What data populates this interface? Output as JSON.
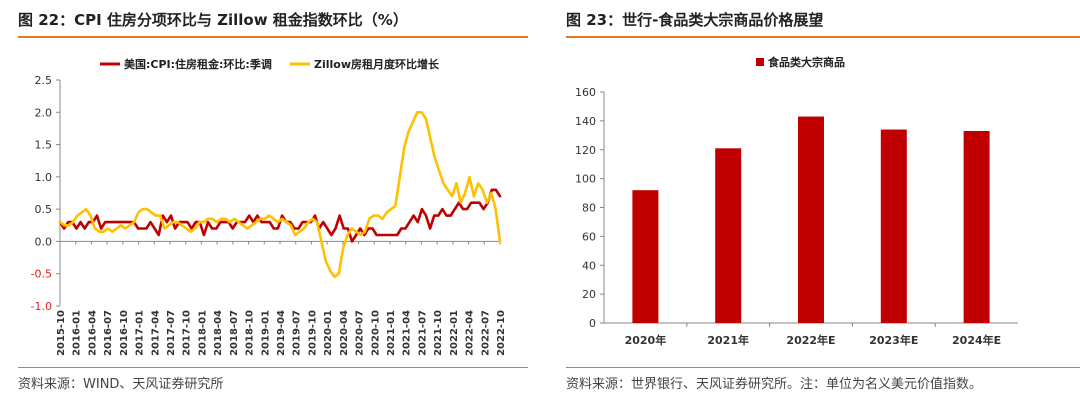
{
  "left_panel": {
    "title": "图 22：CPI 住房分项环比与 Zillow 租金指数环比（%）",
    "source": "资料来源：WIND、天风证券研究所"
  },
  "right_panel": {
    "title": "图 23：世行-食品类大宗商品价格展望",
    "source": "资料来源：世界银行、天风证券研究所。注：单位为名义美元价值指数。"
  },
  "colors": {
    "accent": "#e07b22",
    "red_series": "#c00000",
    "yellow_series": "#ffc000",
    "negative_tick": "#e02020"
  },
  "chart_data": [
    {
      "type": "line",
      "title": "CPI 住房分项环比与 Zillow 租金指数环比（%）",
      "ylim": [
        -1.0,
        2.5
      ],
      "yticks": [
        "2.5",
        "2.0",
        "1.5",
        "1.0",
        "0.5",
        "0.0",
        "-0.5",
        "-1.0"
      ],
      "xtick_labels": [
        "2015-10",
        "2016-01",
        "2016-04",
        "2016-07",
        "2016-10",
        "2017-01",
        "2017-04",
        "2017-07",
        "2017-10",
        "2018-01",
        "2018-04",
        "2018-07",
        "2018-10",
        "2019-01",
        "2019-04",
        "2019-07",
        "2019-10",
        "2020-01",
        "2020-04",
        "2020-07",
        "2020-10",
        "2021-01",
        "2021-04",
        "2021-07",
        "2021-10",
        "2022-01",
        "2022-04",
        "2022-07",
        "2022-10"
      ],
      "x_start": "2015-10",
      "x_end": "2022-10",
      "legend_position": "top",
      "series": [
        {
          "name": "美国:CPI:住房租金:环比:季调",
          "color": "#c00000",
          "values": [
            0.3,
            0.2,
            0.3,
            0.3,
            0.2,
            0.3,
            0.2,
            0.3,
            0.3,
            0.4,
            0.2,
            0.3,
            0.3,
            0.3,
            0.3,
            0.3,
            0.3,
            0.3,
            0.3,
            0.2,
            0.2,
            0.2,
            0.3,
            0.2,
            0.1,
            0.4,
            0.3,
            0.4,
            0.2,
            0.3,
            0.3,
            0.3,
            0.2,
            0.3,
            0.3,
            0.1,
            0.3,
            0.2,
            0.2,
            0.3,
            0.3,
            0.3,
            0.2,
            0.3,
            0.3,
            0.3,
            0.4,
            0.3,
            0.4,
            0.3,
            0.3,
            0.3,
            0.2,
            0.2,
            0.4,
            0.3,
            0.3,
            0.2,
            0.2,
            0.3,
            0.3,
            0.3,
            0.4,
            0.2,
            0.3,
            0.2,
            0.1,
            0.2,
            0.4,
            0.2,
            0.2,
            0.0,
            0.1,
            0.2,
            0.1,
            0.2,
            0.2,
            0.1,
            0.1,
            0.1,
            0.1,
            0.1,
            0.1,
            0.2,
            0.2,
            0.3,
            0.4,
            0.3,
            0.5,
            0.4,
            0.2,
            0.4,
            0.4,
            0.5,
            0.4,
            0.4,
            0.5,
            0.6,
            0.5,
            0.5,
            0.6,
            0.6,
            0.6,
            0.5,
            0.6,
            0.8,
            0.8,
            0.7
          ]
        },
        {
          "name": "Zillow房租月度环比增长",
          "color": "#ffc000",
          "values": [
            0.3,
            0.25,
            0.25,
            0.3,
            0.4,
            0.45,
            0.5,
            0.4,
            0.2,
            0.15,
            0.15,
            0.2,
            0.15,
            0.2,
            0.25,
            0.2,
            0.25,
            0.3,
            0.45,
            0.5,
            0.5,
            0.45,
            0.4,
            0.4,
            0.2,
            0.25,
            0.3,
            0.3,
            0.25,
            0.2,
            0.15,
            0.2,
            0.3,
            0.3,
            0.35,
            0.35,
            0.3,
            0.35,
            0.35,
            0.3,
            0.35,
            0.3,
            0.25,
            0.2,
            0.25,
            0.3,
            0.35,
            0.35,
            0.4,
            0.35,
            0.3,
            0.35,
            0.3,
            0.25,
            0.1,
            0.15,
            0.2,
            0.3,
            0.35,
            0.3,
            0.0,
            -0.3,
            -0.45,
            -0.55,
            -0.5,
            -0.1,
            0.1,
            0.2,
            0.15,
            0.1,
            0.15,
            0.35,
            0.4,
            0.4,
            0.35,
            0.45,
            0.5,
            0.55,
            1.0,
            1.45,
            1.7,
            1.85,
            2.0,
            2.0,
            1.9,
            1.6,
            1.3,
            1.1,
            0.9,
            0.8,
            0.7,
            0.9,
            0.6,
            0.75,
            1.0,
            0.7,
            0.9,
            0.8,
            0.6,
            0.75,
            0.5,
            0.0
          ]
        }
      ]
    },
    {
      "type": "bar",
      "categories": [
        "2020年",
        "2021年",
        "2022年E",
        "2023年E",
        "2024年E"
      ],
      "values": [
        92,
        121,
        143,
        134,
        133
      ],
      "ylim": [
        0,
        160
      ],
      "yticks": [
        "160",
        "140",
        "120",
        "100",
        "80",
        "60",
        "40",
        "20",
        "0"
      ],
      "legend_position": "top",
      "series": [
        {
          "name": "食品类大宗商品",
          "color": "#c00000"
        }
      ]
    }
  ]
}
